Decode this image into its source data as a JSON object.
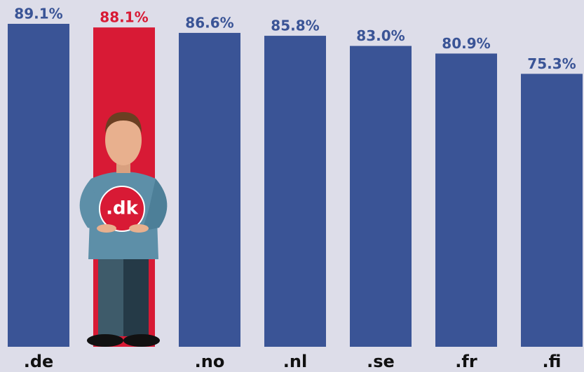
{
  "chart_data": {
    "type": "bar",
    "categories": [
      ".de",
      null,
      ".no",
      ".nl",
      ".se",
      ".fr",
      ".fi"
    ],
    "values": [
      89.1,
      88.1,
      86.6,
      85.8,
      83.0,
      80.9,
      75.3
    ],
    "value_labels": [
      "89.1%",
      "88.1%",
      "86.6%",
      "85.8%",
      "83.0%",
      "80.9%",
      "75.3%"
    ],
    "colors": [
      "#3a5496",
      "#d81a35",
      "#3a5496",
      "#3a5496",
      "#3a5496",
      "#3a5496",
      "#3a5496"
    ],
    "annotation": ".dk"
  }
}
